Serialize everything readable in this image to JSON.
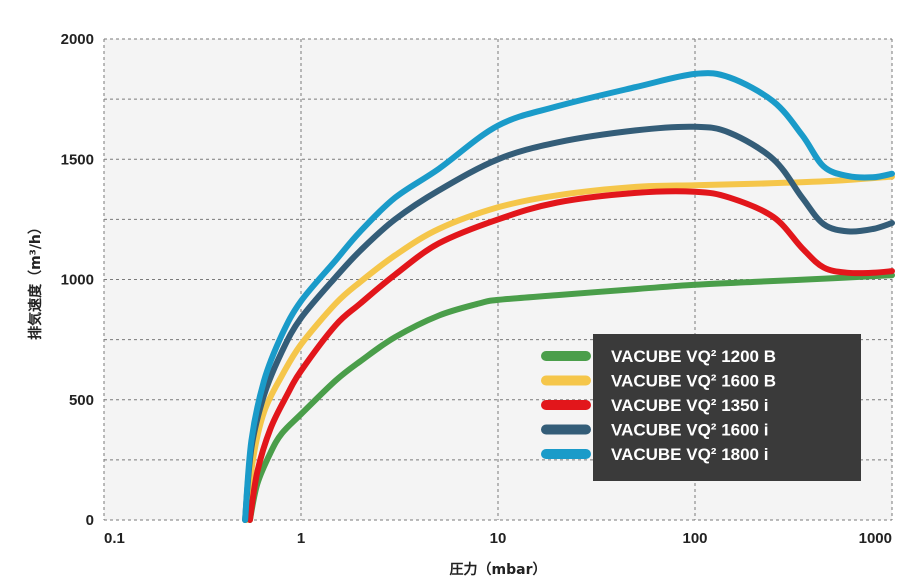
{
  "chart_data": {
    "type": "line",
    "title": "",
    "xlabel": "圧力（mbar）",
    "ylabel": "排気速度（m³/h）",
    "x_scale": "log",
    "xlim": [
      0.1,
      1000
    ],
    "ylim": [
      0,
      2000
    ],
    "x_ticks": [
      "0.1",
      "1",
      "10",
      "100",
      "1000"
    ],
    "y_ticks": [
      "0",
      "500",
      "1000",
      "1500",
      "2000"
    ],
    "grid": true,
    "legend_position": "bottom-right",
    "series": [
      {
        "name": "VACUBE VQ² 1200 B",
        "color": "#4a9e4a",
        "points": [
          [
            0.55,
            0
          ],
          [
            0.6,
            150
          ],
          [
            0.7,
            280
          ],
          [
            0.8,
            360
          ],
          [
            1,
            440
          ],
          [
            1.5,
            580
          ],
          [
            2,
            660
          ],
          [
            3,
            760
          ],
          [
            5,
            850
          ],
          [
            8,
            900
          ],
          [
            10,
            915
          ],
          [
            20,
            935
          ],
          [
            50,
            960
          ],
          [
            100,
            978
          ],
          [
            200,
            990
          ],
          [
            500,
            1005
          ],
          [
            1000,
            1018
          ]
        ]
      },
      {
        "name": "VACUBE VQ² 1600 B",
        "color": "#f5c64a",
        "points": [
          [
            0.53,
            0
          ],
          [
            0.57,
            250
          ],
          [
            0.65,
            450
          ],
          [
            0.8,
            600
          ],
          [
            1,
            730
          ],
          [
            1.5,
            900
          ],
          [
            2,
            990
          ],
          [
            3,
            1100
          ],
          [
            5,
            1210
          ],
          [
            10,
            1300
          ],
          [
            20,
            1350
          ],
          [
            50,
            1385
          ],
          [
            100,
            1392
          ],
          [
            200,
            1398
          ],
          [
            500,
            1410
          ],
          [
            1000,
            1428
          ]
        ]
      },
      {
        "name": "VACUBE VQ² 1350 i",
        "color": "#e2161b",
        "points": [
          [
            0.55,
            0
          ],
          [
            0.6,
            200
          ],
          [
            0.7,
            380
          ],
          [
            0.85,
            520
          ],
          [
            1,
            620
          ],
          [
            1.5,
            810
          ],
          [
            2,
            900
          ],
          [
            3,
            1020
          ],
          [
            5,
            1150
          ],
          [
            10,
            1250
          ],
          [
            20,
            1320
          ],
          [
            50,
            1360
          ],
          [
            100,
            1365
          ],
          [
            150,
            1340
          ],
          [
            250,
            1260
          ],
          [
            350,
            1130
          ],
          [
            450,
            1050
          ],
          [
            600,
            1028
          ],
          [
            800,
            1028
          ],
          [
            1000,
            1035
          ]
        ]
      },
      {
        "name": "VACUBE VQ² 1600 i",
        "color": "#345d78",
        "points": [
          [
            0.52,
            0
          ],
          [
            0.56,
            300
          ],
          [
            0.65,
            520
          ],
          [
            0.8,
            700
          ],
          [
            1,
            840
          ],
          [
            1.5,
            1010
          ],
          [
            2,
            1120
          ],
          [
            3,
            1250
          ],
          [
            5,
            1370
          ],
          [
            10,
            1500
          ],
          [
            20,
            1570
          ],
          [
            50,
            1620
          ],
          [
            100,
            1635
          ],
          [
            150,
            1610
          ],
          [
            250,
            1500
          ],
          [
            350,
            1340
          ],
          [
            450,
            1230
          ],
          [
            600,
            1200
          ],
          [
            800,
            1210
          ],
          [
            1000,
            1235
          ]
        ]
      },
      {
        "name": "VACUBE VQ² 1800 i",
        "color": "#1a9bc9",
        "points": [
          [
            0.52,
            0
          ],
          [
            0.56,
            330
          ],
          [
            0.65,
            580
          ],
          [
            0.8,
            770
          ],
          [
            1,
            910
          ],
          [
            1.5,
            1080
          ],
          [
            2,
            1200
          ],
          [
            3,
            1340
          ],
          [
            5,
            1460
          ],
          [
            10,
            1640
          ],
          [
            20,
            1720
          ],
          [
            50,
            1800
          ],
          [
            100,
            1855
          ],
          [
            150,
            1840
          ],
          [
            250,
            1740
          ],
          [
            350,
            1600
          ],
          [
            450,
            1470
          ],
          [
            600,
            1430
          ],
          [
            800,
            1425
          ],
          [
            1000,
            1440
          ]
        ]
      }
    ]
  }
}
